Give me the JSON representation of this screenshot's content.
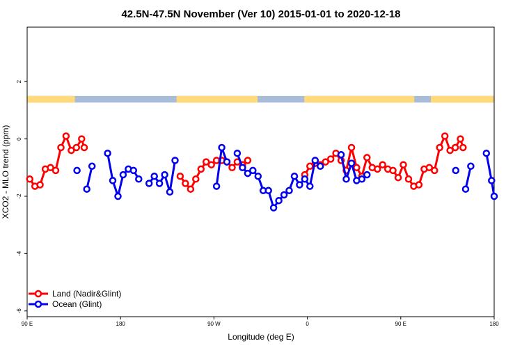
{
  "chart_data": {
    "type": "line",
    "title": "42.5N-47.5N November (Ver 10)   2015-01-01 to 2020-12-18",
    "xlabel": "Longitude (deg E)",
    "ylabel": "XCO2 - MLO trend (ppm)",
    "xlim": [
      90,
      540
    ],
    "ylim": [
      -6.2,
      3.9
    ],
    "x_ticks": [
      {
        "value": 90,
        "label": "90 E"
      },
      {
        "value": 180,
        "label": "180"
      },
      {
        "value": 270,
        "label": "90 W"
      },
      {
        "value": 360,
        "label": "0"
      },
      {
        "value": 450,
        "label": "90 E"
      },
      {
        "value": 540,
        "label": "180"
      }
    ],
    "y_ticks": [
      {
        "value": 2,
        "label": "2"
      },
      {
        "value": 0,
        "label": "0"
      },
      {
        "value": -2,
        "label": "-2"
      },
      {
        "value": -4,
        "label": "-4"
      },
      {
        "value": -6,
        "label": "-6"
      }
    ],
    "legend_position": "bottom-left",
    "land_ocean_strip": {
      "y_range": [
        1.27,
        1.5
      ],
      "land_color": "#ffd97a",
      "ocean_color": "#a8bcd8",
      "land_segments": [
        [
          90,
          136
        ],
        [
          234,
          312
        ],
        [
          357,
          463
        ],
        [
          479,
          540
        ]
      ]
    },
    "series": [
      {
        "name": "Land (Nadir&Glint)",
        "color": "#ff0000",
        "segments": [
          [
            [
              92.5,
              -1.4
            ],
            [
              97.5,
              -1.65
            ],
            [
              102.5,
              -1.6
            ],
            [
              107.5,
              -1.05
            ],
            [
              112.5,
              -1.0
            ],
            [
              117.5,
              -1.1
            ],
            [
              122.5,
              -0.3
            ],
            [
              127.5,
              0.1
            ],
            [
              132.5,
              -0.4
            ],
            [
              137.5,
              -0.3
            ],
            [
              142.5,
              0.0
            ],
            [
              145,
              -0.3
            ]
          ],
          [
            [
              237.5,
              -1.3
            ],
            [
              242.5,
              -1.55
            ],
            [
              247.5,
              -1.75
            ],
            [
              252.5,
              -1.4
            ],
            [
              257.5,
              -1.05
            ],
            [
              262.5,
              -0.8
            ],
            [
              267.5,
              -0.9
            ],
            [
              272.5,
              -0.75
            ],
            [
              277.5,
              -0.75
            ],
            [
              282.5,
              -0.8
            ],
            [
              287.5,
              -1.0
            ],
            [
              292.5,
              -0.8
            ],
            [
              297.5,
              -0.9
            ]
          ],
          [
            [
              302.5,
              -0.75
            ]
          ],
          [
            [
              357.5,
              -1.25
            ],
            [
              362.5,
              -0.95
            ],
            [
              367.5,
              -0.85
            ],
            [
              372.5,
              -0.9
            ],
            [
              377.5,
              -0.8
            ],
            [
              382.5,
              -0.7
            ],
            [
              387.5,
              -0.5
            ],
            [
              392.5,
              -0.75
            ],
            [
              397.5,
              -1.1
            ],
            [
              402.5,
              -0.3
            ],
            [
              407.5,
              -1.0
            ],
            [
              412.5,
              -1.3
            ],
            [
              417.5,
              -0.65
            ],
            [
              422.5,
              -1.0
            ],
            [
              427.5,
              -1.05
            ],
            [
              432.5,
              -0.9
            ],
            [
              437.5,
              -1.05
            ],
            [
              442.5,
              -1.1
            ],
            [
              447.5,
              -1.35
            ],
            [
              452.5,
              -0.9
            ],
            [
              457.5,
              -1.4
            ],
            [
              462.5,
              -1.65
            ],
            [
              467.5,
              -1.6
            ],
            [
              472.5,
              -1.05
            ],
            [
              477.5,
              -1.0
            ],
            [
              482.5,
              -1.1
            ],
            [
              487.5,
              -0.3
            ],
            [
              492.5,
              0.1
            ],
            [
              497.5,
              -0.4
            ],
            [
              502.5,
              -0.3
            ],
            [
              507.5,
              0.0
            ],
            [
              510,
              -0.3
            ]
          ]
        ]
      },
      {
        "name": "Ocean (Glint)",
        "color": "#0000ee",
        "segments": [
          [
            [
              138,
              -1.1
            ]
          ],
          [
            [
              147.5,
              -1.75
            ],
            [
              152.5,
              -0.95
            ]
          ],
          [
            [
              167.5,
              -0.5
            ],
            [
              172.5,
              -1.45
            ],
            [
              177.5,
              -2.0
            ],
            [
              182.5,
              -1.25
            ],
            [
              187.5,
              -1.05
            ],
            [
              192.5,
              -1.1
            ],
            [
              197.5,
              -1.4
            ]
          ],
          [
            [
              207.5,
              -1.55
            ],
            [
              212.5,
              -1.3
            ],
            [
              217.5,
              -1.55
            ],
            [
              222.5,
              -1.25
            ],
            [
              227.5,
              -1.85
            ],
            [
              232.5,
              -0.75
            ]
          ],
          [
            [
              272.5,
              -1.65
            ],
            [
              277.5,
              -0.3
            ],
            [
              282.5,
              -0.8
            ]
          ],
          [
            [
              292.5,
              -0.5
            ],
            [
              297.5,
              -1.0
            ],
            [
              302.5,
              -1.2
            ],
            [
              307.5,
              -1.1
            ],
            [
              312.5,
              -1.3
            ],
            [
              317.5,
              -1.8
            ],
            [
              322.5,
              -1.8
            ],
            [
              327.5,
              -2.4
            ],
            [
              332.5,
              -2.15
            ],
            [
              337.5,
              -1.95
            ],
            [
              342.5,
              -1.8
            ],
            [
              347.5,
              -1.3
            ],
            [
              352.5,
              -1.6
            ],
            [
              357.5,
              -1.4
            ],
            [
              362.5,
              -1.65
            ],
            [
              367.5,
              -0.75
            ],
            [
              372.5,
              -0.95
            ]
          ],
          [
            [
              392.5,
              -0.55
            ],
            [
              397.5,
              -1.4
            ],
            [
              402.5,
              -0.85
            ],
            [
              407.5,
              -1.45
            ],
            [
              412.5,
              -1.4
            ],
            [
              417.5,
              -1.25
            ]
          ],
          [
            [
              503,
              -1.1
            ]
          ],
          [
            [
              512.5,
              -1.75
            ],
            [
              517.5,
              -0.95
            ]
          ],
          [
            [
              532.5,
              -0.5
            ],
            [
              537.5,
              -1.45
            ],
            [
              540,
              -2.0
            ]
          ]
        ]
      }
    ]
  }
}
